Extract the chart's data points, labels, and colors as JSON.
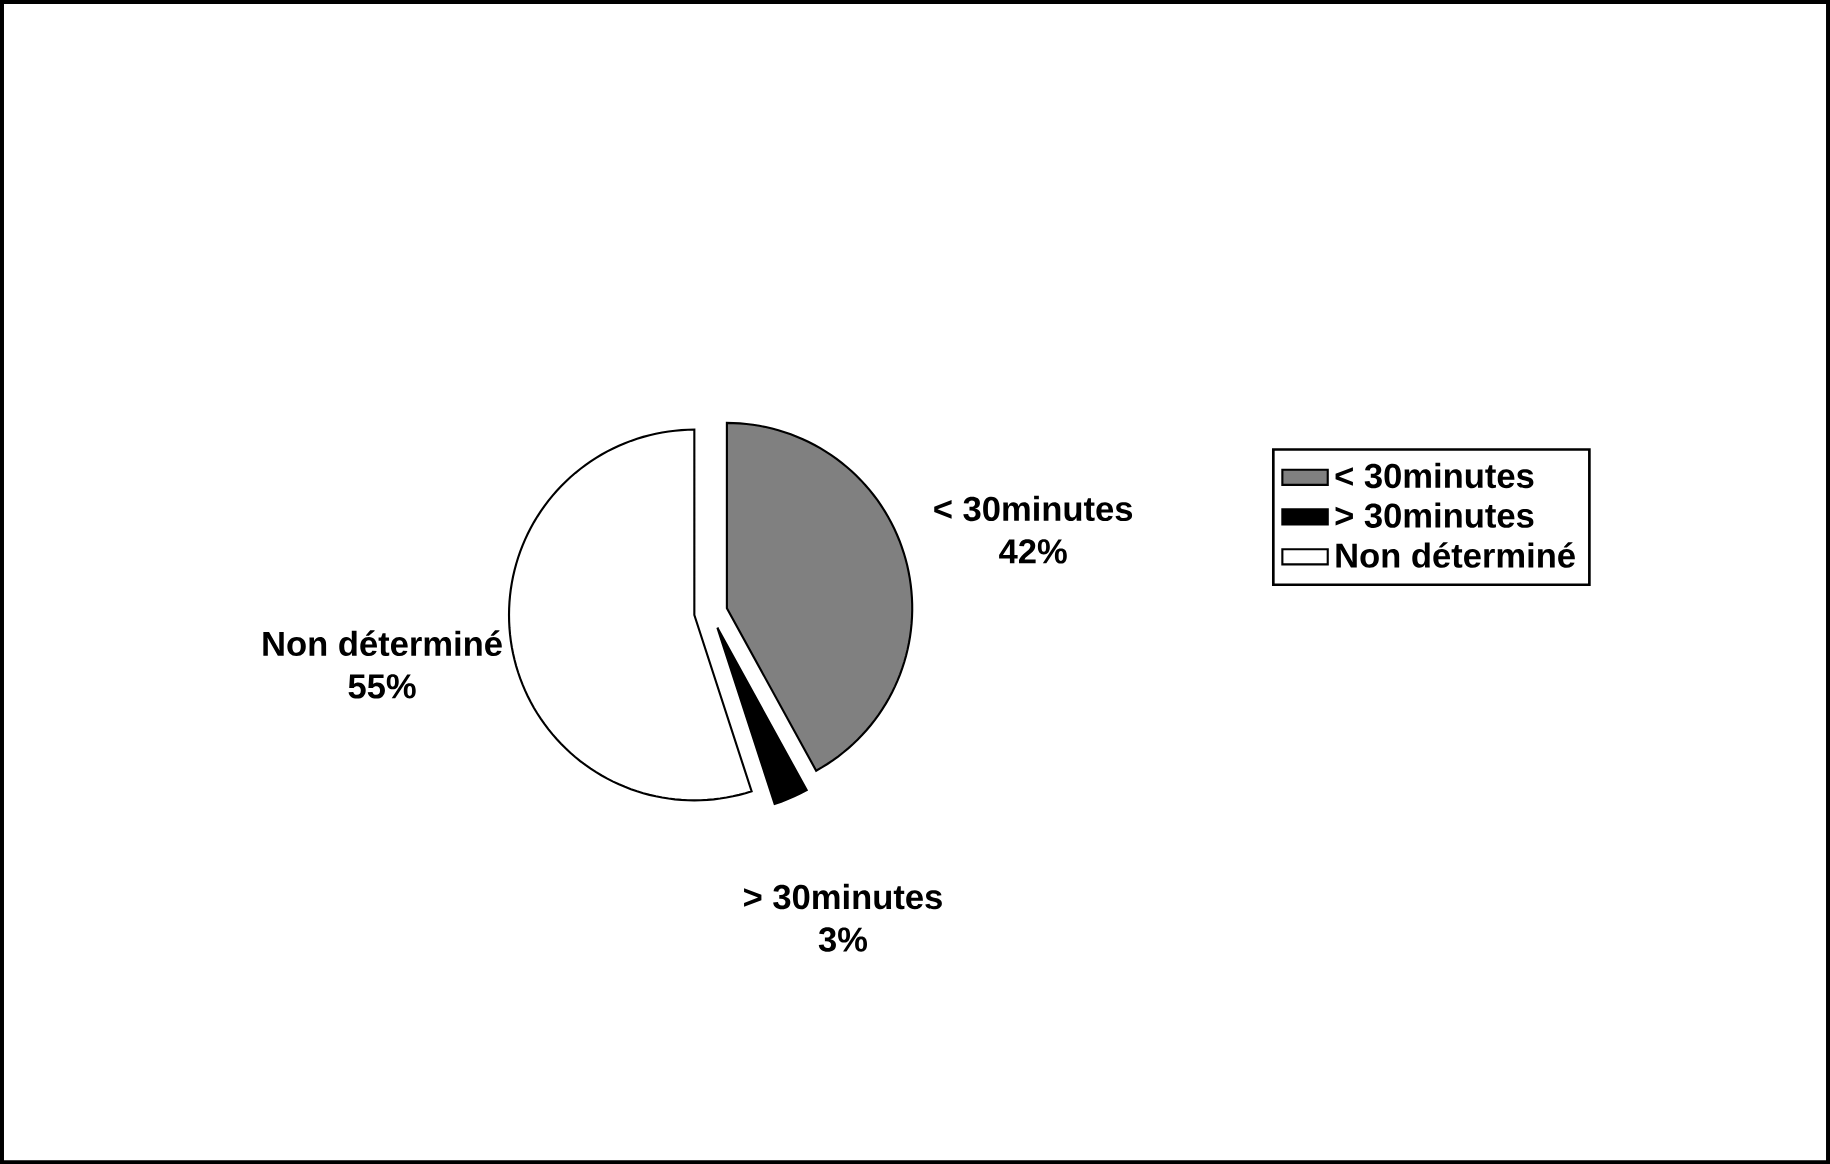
{
  "chart_data": {
    "type": "pie",
    "categories": [
      "< 30minutes",
      "> 30minutes",
      "Non déterminé"
    ],
    "values": [
      42,
      3,
      55
    ],
    "colors": [
      "#808080",
      "#000000",
      "#ffffff"
    ],
    "value_labels": [
      "42%",
      "3%",
      "55%"
    ],
    "legend": "right"
  }
}
